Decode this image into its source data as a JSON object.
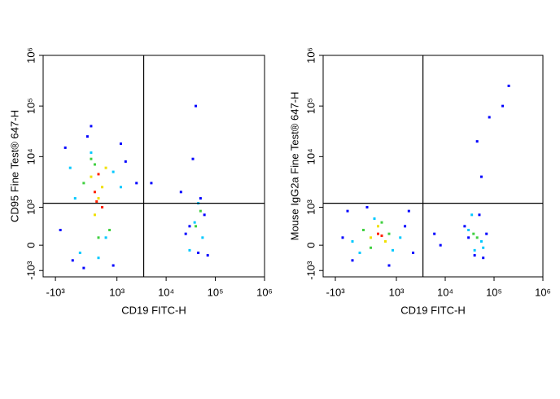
{
  "chart_data": [
    {
      "type": "scatter",
      "x_label": "CD19 FITC-H",
      "y_label": "CD95 Fine Test® 647-H",
      "xlim": [
        -1500,
        1000000
      ],
      "ylim": [
        -1250,
        1000000
      ],
      "xticks": [
        {
          "value": -1000,
          "label": "-10³"
        },
        {
          "value": 1000,
          "label": "10³"
        },
        {
          "value": 10000,
          "label": "10⁴"
        },
        {
          "value": 100000,
          "label": "10⁵"
        },
        {
          "value": 1000000,
          "label": "10⁶"
        }
      ],
      "yticks": [
        {
          "value": -1000,
          "label": "-10³"
        },
        0,
        {
          "value": 1000,
          "label": "10³"
        },
        {
          "value": 10000,
          "label": "10⁴"
        },
        {
          "value": 100000,
          "label": "10⁵"
        },
        {
          "value": 1000000,
          "label": "10⁶"
        }
      ],
      "gate_x": 3500,
      "gate_y": 1200,
      "series": [
        {
          "color": "#0000ff",
          "x": [
            -600,
            -300,
            200,
            900,
            1500,
            2500,
            -800,
            100,
            1200,
            300,
            20000,
            30000,
            45000,
            60000,
            35000,
            50000,
            25000,
            40000,
            70000,
            5000
          ],
          "values": [
            15000,
            -600,
            25000,
            -800,
            8000,
            3000,
            400,
            -900,
            18000,
            40000,
            2000,
            500,
            -300,
            800,
            9000,
            1500,
            300,
            100000,
            -400,
            3000
          ]
        },
        {
          "color": "#00c8ff",
          "x": [
            -400,
            0,
            300,
            700,
            1200,
            -200,
            500,
            900,
            38000,
            45000,
            55000,
            30000
          ],
          "values": [
            6000,
            -300,
            12000,
            200,
            2500,
            1500,
            -500,
            5000,
            600,
            1200,
            200,
            -200
          ]
        },
        {
          "color": "#40d040",
          "x": [
            100,
            400,
            600,
            800,
            300,
            500,
            40000,
            50000
          ],
          "values": [
            3000,
            7000,
            1000,
            400,
            9000,
            200,
            500,
            900
          ]
        },
        {
          "color": "#f0e000",
          "x": [
            300,
            500,
            700,
            400,
            600
          ],
          "values": [
            4000,
            1500,
            6000,
            800,
            2500
          ]
        },
        {
          "color": "#ff2000",
          "x": [
            400,
            600,
            500,
            450
          ],
          "values": [
            2000,
            1000,
            4500,
            1300
          ]
        }
      ]
    },
    {
      "type": "scatter",
      "x_label": "CD19 FITC-H",
      "y_label": "Mouse IgG2a Fine Test® 647-H",
      "xlim": [
        -1500,
        1000000
      ],
      "ylim": [
        -1250,
        1000000
      ],
      "xticks": [
        {
          "value": -1000,
          "label": "-10³"
        },
        {
          "value": 1000,
          "label": "10³"
        },
        {
          "value": 10000,
          "label": "10⁴"
        },
        {
          "value": 100000,
          "label": "10⁵"
        },
        {
          "value": 1000000,
          "label": "10⁶"
        }
      ],
      "yticks": [
        {
          "value": -1000,
          "label": "-10³"
        },
        0,
        {
          "value": 1000,
          "label": "10³"
        },
        {
          "value": 10000,
          "label": "10⁴"
        },
        {
          "value": 100000,
          "label": "10⁵"
        },
        {
          "value": 1000000,
          "label": "10⁶"
        }
      ],
      "gate_x": 3500,
      "gate_y": 1200,
      "series": [
        {
          "color": "#0000ff",
          "x": [
            -700,
            -300,
            1500,
            2200,
            200,
            800,
            -500,
            1800,
            6000,
            8000,
            25000,
            60000,
            70000,
            30000,
            40000,
            50000,
            45000,
            55000,
            200000,
            80000,
            150000
          ],
          "values": [
            200,
            -600,
            500,
            -300,
            1000,
            -800,
            900,
            900,
            300,
            0,
            500,
            -500,
            300,
            200,
            -400,
            800,
            20000,
            4000,
            250000,
            60000,
            100000
          ]
        },
        {
          "color": "#00c8ff",
          "x": [
            -300,
            0,
            1200,
            400,
            900,
            30000,
            40000,
            55000,
            35000,
            60000
          ],
          "values": [
            100,
            -300,
            200,
            700,
            -200,
            400,
            -200,
            100,
            800,
            -100
          ]
        },
        {
          "color": "#40d040",
          "x": [
            100,
            300,
            800,
            600,
            45000,
            38000
          ],
          "values": [
            400,
            -100,
            300,
            600,
            200,
            300
          ]
        },
        {
          "color": "#f0e000",
          "x": [
            300,
            500,
            700
          ],
          "values": [
            200,
            500,
            100
          ]
        },
        {
          "color": "#ff2000",
          "x": [
            500,
            600
          ],
          "values": [
            300,
            250
          ]
        }
      ]
    }
  ]
}
